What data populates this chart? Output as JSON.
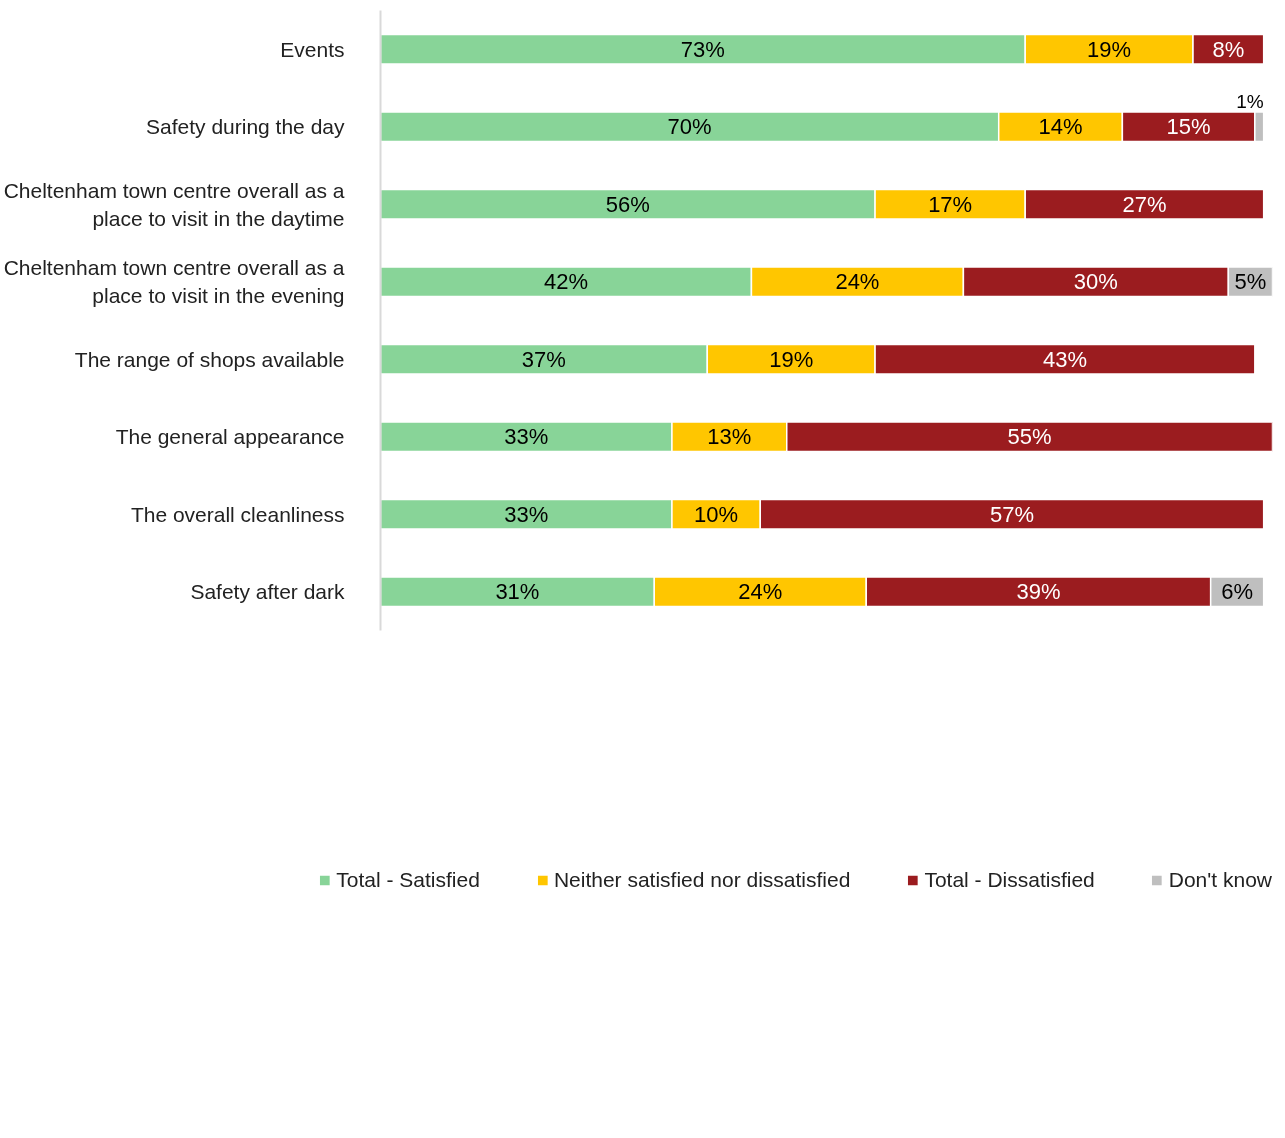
{
  "chart_data": {
    "type": "bar",
    "orientation": "horizontal",
    "stacked": true,
    "grid": false,
    "legend": "bottom",
    "tick_labels": "y",
    "categories": [
      "Events",
      "Safety during the day",
      "Cheltenham town centre overall as a place to visit in the daytime",
      "Cheltenham town centre overall as a place to visit in the evening",
      "The range of shops available",
      "The general appearance",
      "The overall cleanliness",
      "Safety after dark"
    ],
    "series": [
      {
        "name": "Total - Satisfied",
        "color": "#88d498",
        "values": [
          73,
          70,
          56,
          42,
          37,
          33,
          33,
          31
        ],
        "value_labels": [
          "73%",
          "70%",
          "56%",
          "42%",
          "37%",
          "33%",
          "33%",
          "31%"
        ]
      },
      {
        "name": "Neither satisfied nor dissatisfied",
        "color": "#ffc600",
        "values": [
          19,
          14,
          17,
          24,
          19,
          13,
          10,
          24
        ],
        "value_labels": [
          "19%",
          "14%",
          "17%",
          "24%",
          "19%",
          "13%",
          "10%",
          "24%"
        ]
      },
      {
        "name": "Total - Dissatisfied",
        "color": "#9b1c1f",
        "values": [
          8,
          15,
          27,
          30,
          43,
          55,
          57,
          39
        ],
        "value_labels": [
          "8%",
          "15%",
          "27%",
          "30%",
          "43%",
          "55%",
          "57%",
          "39%"
        ]
      },
      {
        "name": "Don't know",
        "color": "#bfbfbf",
        "values": [
          null,
          1,
          null,
          5,
          null,
          null,
          null,
          6
        ],
        "value_labels": [
          null,
          "1%",
          null,
          "5%",
          null,
          null,
          null,
          "6%"
        ]
      }
    ]
  }
}
